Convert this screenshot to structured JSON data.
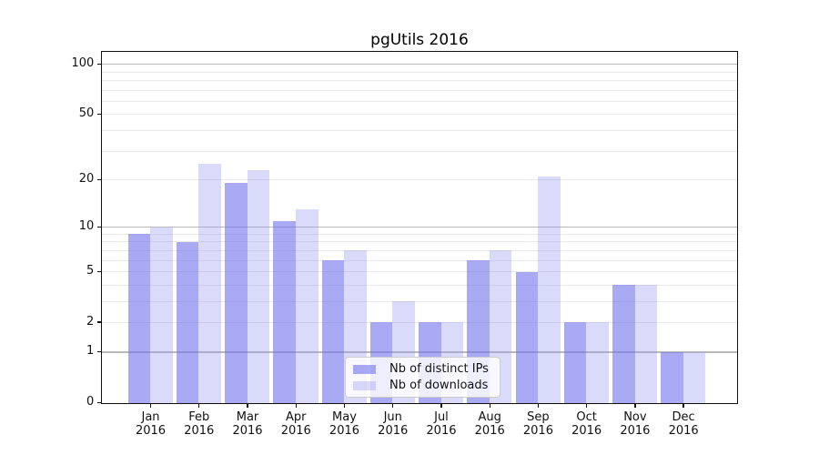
{
  "chart_data": {
    "type": "bar",
    "title": "pgUtils 2016",
    "months": [
      "Jan",
      "Feb",
      "Mar",
      "Apr",
      "May",
      "Jun",
      "Jul",
      "Aug",
      "Sep",
      "Oct",
      "Nov",
      "Dec"
    ],
    "year_label": "2016",
    "series": [
      {
        "name": "Nb of distinct IPs",
        "color": "rgba(118,118,238,0.62)",
        "values": [
          9,
          8,
          19,
          11,
          6,
          2,
          2,
          6,
          5,
          2,
          4,
          1
        ]
      },
      {
        "name": "Nb of downloads",
        "color": "rgba(150,150,242,0.35)",
        "values": [
          10,
          25,
          23,
          13,
          7,
          3,
          2,
          7,
          21,
          2,
          4,
          1
        ]
      }
    ],
    "y_axis": {
      "scale": "log10(1+v)",
      "tick_labels": [
        0,
        1,
        2,
        5,
        10,
        20,
        50,
        100
      ],
      "major_gridlines": [
        1,
        10,
        100
      ],
      "minor_gridlines": [
        2,
        3,
        4,
        5,
        6,
        7,
        8,
        9,
        20,
        30,
        40,
        50,
        60,
        70,
        80,
        90
      ],
      "max": 118,
      "ylim": [
        0,
        118
      ]
    },
    "legend": {
      "position": "lower center"
    },
    "colors": {
      "spine": "#111111",
      "grid_major": "#b9b9b9",
      "grid_minor": "#e9e9e9",
      "text": "#111111",
      "background": "#ffffff"
    }
  }
}
